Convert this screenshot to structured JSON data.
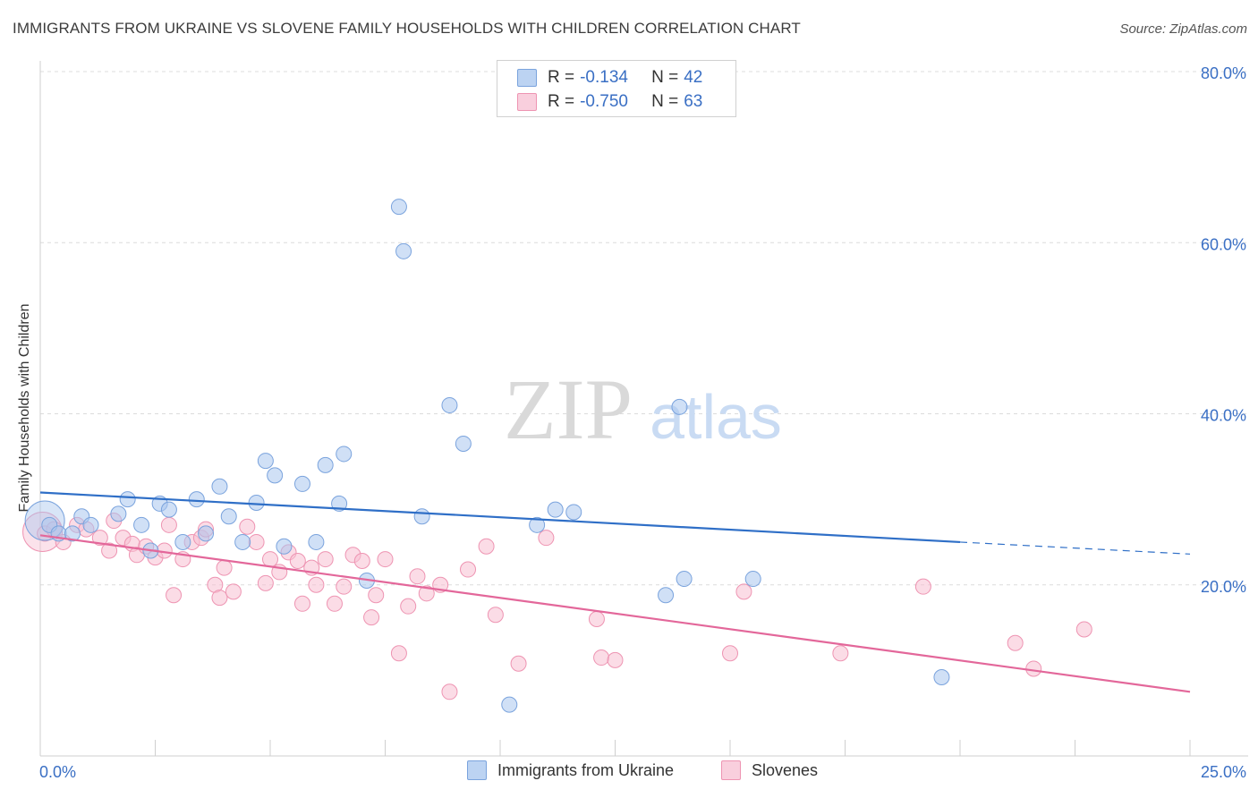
{
  "header": {
    "title": "IMMIGRANTS FROM UKRAINE VS SLOVENE FAMILY HOUSEHOLDS WITH CHILDREN CORRELATION CHART",
    "source": "Source: ZipAtlas.com"
  },
  "legend": {
    "rows": [
      {
        "r_label": "R =",
        "r_value": "-0.134",
        "n_label": "N =",
        "n_value": "42",
        "color": "#a9c6ee",
        "border": "#7aa3dd"
      },
      {
        "r_label": "R =",
        "r_value": "-0.750",
        "n_label": "N =",
        "n_value": "63",
        "color": "#f7bfd2",
        "border": "#ee94b2"
      }
    ]
  },
  "watermark": {
    "zip": "ZIP",
    "atlas": "atlas"
  },
  "chart_data": {
    "type": "scatter",
    "xlabel": "",
    "ylabel": "Family Households with Children",
    "xlim": [
      0,
      25
    ],
    "ylim": [
      0,
      80
    ],
    "x_tick_labels": [
      "0.0%",
      "25.0%"
    ],
    "y_ticks": [
      20,
      40,
      60,
      80
    ],
    "y_tick_labels": [
      "20.0%",
      "40.0%",
      "60.0%",
      "80.0%"
    ],
    "grid": true,
    "series": [
      {
        "name": "Immigrants from Ukraine",
        "color": "#a9c6ee",
        "stroke": "#7aa3dd",
        "line_color": "#2f6fc7",
        "trend": {
          "x0": 0,
          "y0": 30.8,
          "x1": 20,
          "y1": 25.0,
          "dash_to_x": 25,
          "dash_to_y": 23.6
        },
        "points": [
          [
            0.2,
            27.0
          ],
          [
            0.4,
            26.0
          ],
          [
            0.7,
            26.0
          ],
          [
            0.9,
            28.0
          ],
          [
            1.1,
            27.0
          ],
          [
            1.7,
            28.3
          ],
          [
            1.9,
            30.0
          ],
          [
            2.2,
            27.0
          ],
          [
            2.4,
            24.0
          ],
          [
            2.6,
            29.5
          ],
          [
            2.8,
            28.8
          ],
          [
            3.1,
            25.0
          ],
          [
            3.4,
            30.0
          ],
          [
            3.6,
            26.0
          ],
          [
            3.9,
            31.5
          ],
          [
            4.1,
            28.0
          ],
          [
            4.4,
            25.0
          ],
          [
            4.7,
            29.6
          ],
          [
            4.9,
            34.5
          ],
          [
            5.1,
            32.8
          ],
          [
            5.3,
            24.5
          ],
          [
            5.7,
            31.8
          ],
          [
            6.0,
            25.0
          ],
          [
            6.2,
            34.0
          ],
          [
            6.5,
            29.5
          ],
          [
            6.6,
            35.3
          ],
          [
            7.1,
            20.5
          ],
          [
            7.8,
            64.2
          ],
          [
            7.9,
            59.0
          ],
          [
            8.3,
            28.0
          ],
          [
            8.9,
            41.0
          ],
          [
            9.2,
            36.5
          ],
          [
            10.2,
            6.0
          ],
          [
            10.8,
            27.0
          ],
          [
            11.2,
            28.8
          ],
          [
            11.6,
            28.5
          ],
          [
            13.6,
            18.8
          ],
          [
            13.9,
            40.8
          ],
          [
            14.0,
            20.7
          ],
          [
            15.5,
            20.7
          ],
          [
            19.6,
            9.2
          ]
        ],
        "large_point": [
          0.1,
          27.5
        ]
      },
      {
        "name": "Slovenes",
        "color": "#f7bfd2",
        "stroke": "#ee94b2",
        "line_color": "#e3679a",
        "trend": {
          "x0": 0,
          "y0": 25.8,
          "x1": 25,
          "y1": 7.5
        },
        "points": [
          [
            0.1,
            26.0
          ],
          [
            0.3,
            26.5
          ],
          [
            0.5,
            25.0
          ],
          [
            0.8,
            27.0
          ],
          [
            1.0,
            26.5
          ],
          [
            1.3,
            25.5
          ],
          [
            1.5,
            24.0
          ],
          [
            1.6,
            27.5
          ],
          [
            1.8,
            25.5
          ],
          [
            2.0,
            24.8
          ],
          [
            2.1,
            23.5
          ],
          [
            2.3,
            24.5
          ],
          [
            2.5,
            23.2
          ],
          [
            2.7,
            24.0
          ],
          [
            2.8,
            27.0
          ],
          [
            2.9,
            18.8
          ],
          [
            3.1,
            23.0
          ],
          [
            3.3,
            25.0
          ],
          [
            3.5,
            25.5
          ],
          [
            3.6,
            26.5
          ],
          [
            3.8,
            20.0
          ],
          [
            3.9,
            18.5
          ],
          [
            4.0,
            22.0
          ],
          [
            4.2,
            19.2
          ],
          [
            4.5,
            26.8
          ],
          [
            4.7,
            25.0
          ],
          [
            4.9,
            20.2
          ],
          [
            5.0,
            23.0
          ],
          [
            5.2,
            21.5
          ],
          [
            5.4,
            23.8
          ],
          [
            5.6,
            22.8
          ],
          [
            5.7,
            17.8
          ],
          [
            5.9,
            22.0
          ],
          [
            6.0,
            20.0
          ],
          [
            6.2,
            23.0
          ],
          [
            6.4,
            17.8
          ],
          [
            6.6,
            19.8
          ],
          [
            6.8,
            23.5
          ],
          [
            7.0,
            22.8
          ],
          [
            7.2,
            16.2
          ],
          [
            7.3,
            18.8
          ],
          [
            7.5,
            23.0
          ],
          [
            7.8,
            12.0
          ],
          [
            8.0,
            17.5
          ],
          [
            8.2,
            21.0
          ],
          [
            8.4,
            19.0
          ],
          [
            8.7,
            20.0
          ],
          [
            8.9,
            7.5
          ],
          [
            9.3,
            21.8
          ],
          [
            9.7,
            24.5
          ],
          [
            9.9,
            16.5
          ],
          [
            10.4,
            10.8
          ],
          [
            11.0,
            25.5
          ],
          [
            12.1,
            16.0
          ],
          [
            12.2,
            11.5
          ],
          [
            12.5,
            11.2
          ],
          [
            15.0,
            12.0
          ],
          [
            15.3,
            19.2
          ],
          [
            17.4,
            12.0
          ],
          [
            19.2,
            19.8
          ],
          [
            21.2,
            13.2
          ],
          [
            21.6,
            10.2
          ],
          [
            22.7,
            14.8
          ]
        ],
        "large_point": [
          0.05,
          26.2
        ]
      }
    ]
  }
}
